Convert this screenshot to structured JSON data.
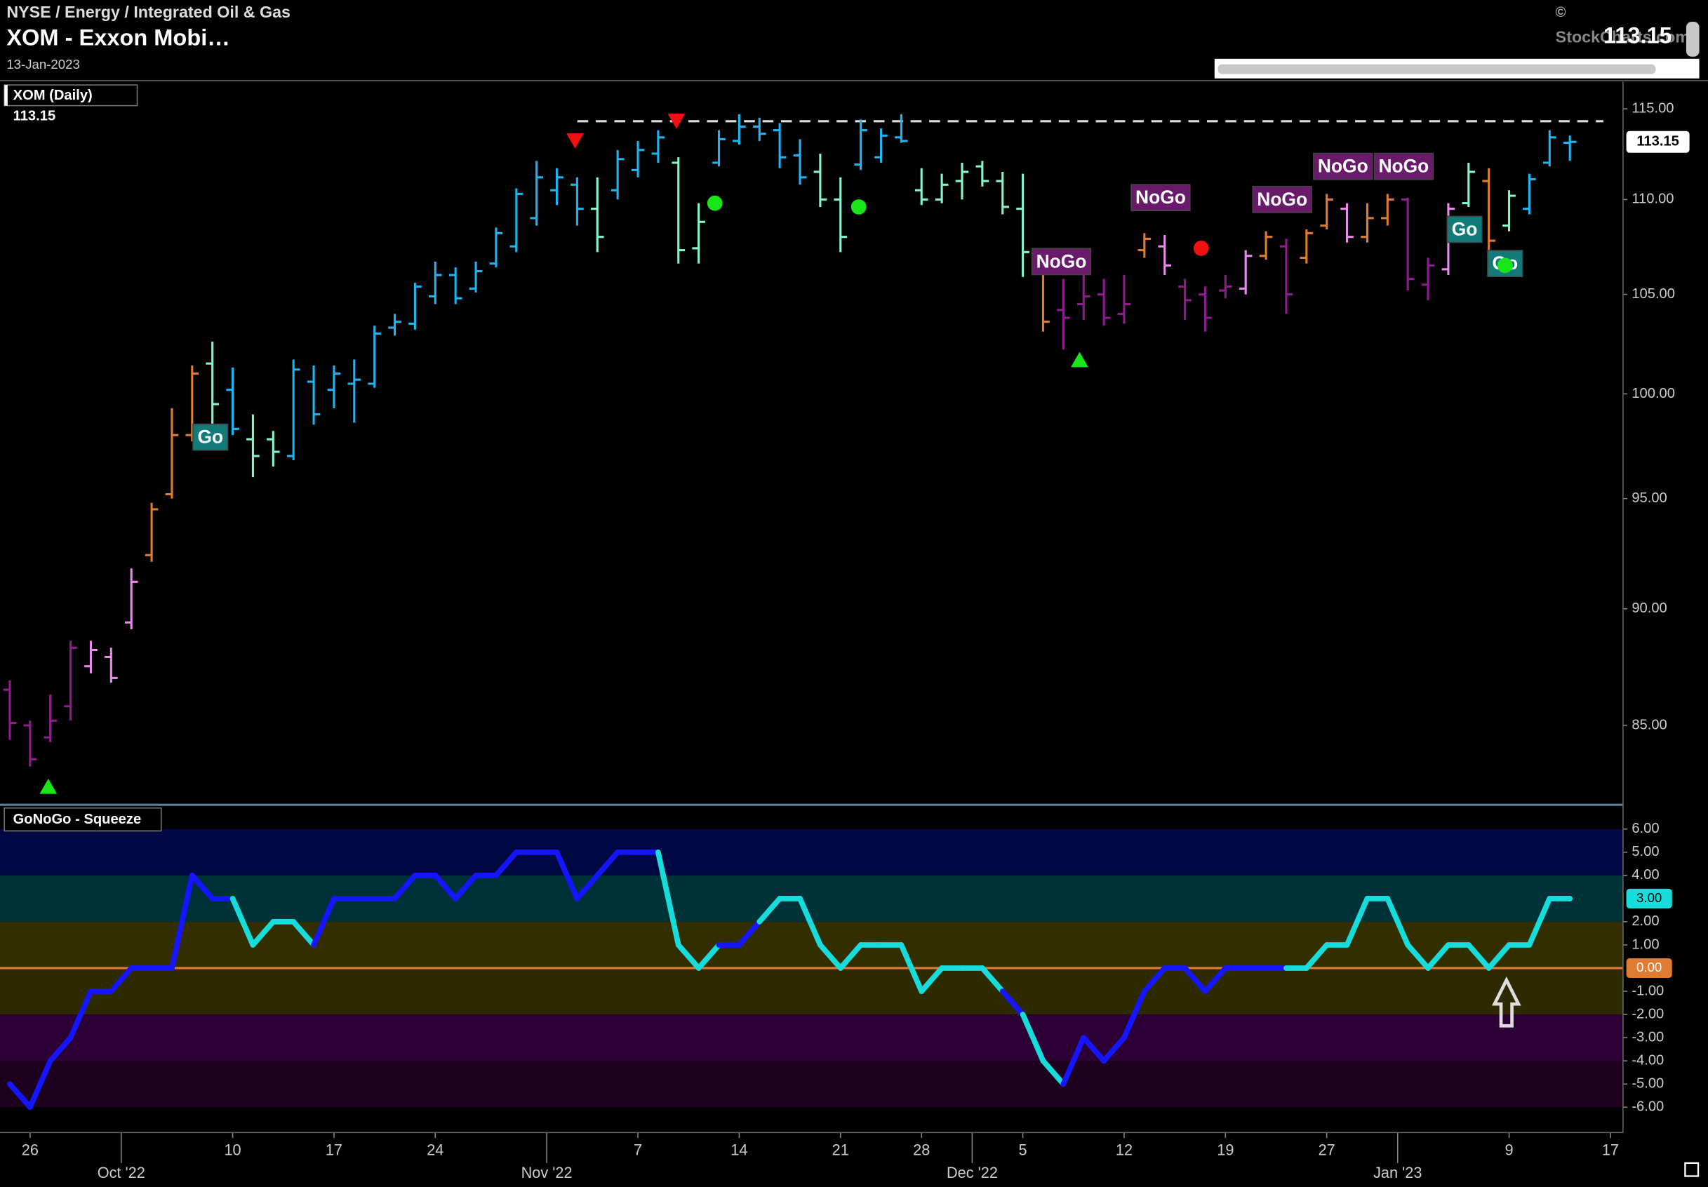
{
  "header": {
    "exchange": "NYSE / Energy / Integrated Oil & Gas",
    "name": "XOM - Exxon Mobi…",
    "date": "13-Jan-2023",
    "price": "113.15",
    "copyright": "©",
    "source": "StockCharts.com"
  },
  "chart_data": [
    {
      "type": "ohlc",
      "legend": "XOM (Daily)",
      "legend_value": "113.15",
      "log_scale": true,
      "ylim": [
        81.8,
        116.54
      ],
      "yticks": [
        {
          "value": 85,
          "label": "85.00"
        },
        {
          "value": 90,
          "label": "90.00"
        },
        {
          "value": 95,
          "label": "95.00"
        },
        {
          "value": 100,
          "label": "100.00"
        },
        {
          "value": 105,
          "label": "105.00"
        },
        {
          "value": 110,
          "label": "110.00"
        },
        {
          "value": 115,
          "label": "115.00"
        }
      ],
      "categories": [
        null,
        "26",
        null,
        null,
        null,
        null,
        null,
        null,
        null,
        null,
        null,
        "10",
        null,
        null,
        null,
        null,
        "17",
        null,
        null,
        null,
        null,
        "24",
        null,
        null,
        null,
        null,
        null,
        null,
        null,
        null,
        null,
        "7",
        null,
        null,
        null,
        null,
        "14",
        null,
        null,
        null,
        null,
        "21",
        null,
        null,
        null,
        "28",
        null,
        null,
        null,
        null,
        "5",
        null,
        null,
        null,
        null,
        "12",
        null,
        null,
        null,
        null,
        "19",
        null,
        null,
        null,
        null,
        "27",
        null,
        null,
        null,
        null,
        null,
        null,
        null,
        null,
        "9",
        null,
        null,
        null,
        null,
        "17"
      ],
      "month_ticks": [
        {
          "value": 5.5,
          "label": "Oct '22"
        },
        {
          "value": 26.5,
          "label": "Nov '22"
        },
        {
          "value": 47.5,
          "label": "Dec '22"
        },
        {
          "value": 68.5,
          "label": "Jan '23"
        }
      ],
      "series": [
        {
          "open": [
            86.5,
            85,
            84.5,
            85.8,
            87.5,
            87.9,
            89.4,
            92.4,
            95.2,
            98,
            101.5,
            100.2,
            97.8,
            97.8,
            97,
            100.6,
            100.2,
            100.5,
            100.5,
            103.3,
            103.5,
            104.9,
            106,
            105.3,
            106.6,
            107.5,
            109,
            110.5,
            110.8,
            109.5,
            110.5,
            111.6,
            112.5,
            112,
            107.4,
            112,
            113.2,
            114,
            113.8,
            112.4,
            111.5,
            110,
            111.9,
            112.3,
            113.4,
            110.5,
            110,
            111,
            111.8,
            111,
            109.5,
            106.2,
            104.2,
            104.5,
            105,
            104,
            107.3,
            107.5,
            105.4,
            105,
            105.2,
            105.3,
            107,
            107.5,
            106.9,
            108.6,
            109.5,
            108,
            109,
            110,
            105.5,
            106.3,
            109.8,
            111,
            108.6,
            109.5,
            112,
            113.1,
            null
          ],
          "high": [
            86.9,
            85.2,
            86.3,
            88.6,
            88.6,
            88.3,
            91.8,
            94.8,
            99.3,
            101.4,
            102.6,
            101.3,
            99,
            98.2,
            101.7,
            101.4,
            101.4,
            101.7,
            103.4,
            104,
            105.6,
            106.7,
            106.4,
            106.7,
            108.5,
            110.6,
            112.1,
            111.7,
            111.2,
            111.2,
            112.7,
            113.2,
            113.8,
            112.3,
            109.8,
            113.8,
            114.7,
            114.5,
            114.2,
            113.3,
            112.5,
            111.2,
            114.4,
            113.9,
            114.7,
            111.7,
            111.4,
            112,
            112.1,
            111.5,
            111.4,
            106.6,
            105.8,
            106.3,
            105.8,
            106,
            108.2,
            108.1,
            105.8,
            105.4,
            106,
            107.3,
            108.3,
            107.9,
            108.4,
            110.3,
            109.8,
            109.8,
            110.3,
            110.1,
            106.9,
            109.8,
            112,
            111.7,
            110.5,
            111.4,
            113.8,
            113.5,
            null
          ],
          "low": [
            84.4,
            83.3,
            84.3,
            85.2,
            87.2,
            86.8,
            89.1,
            92.1,
            95,
            97.7,
            98.2,
            98,
            96,
            96.5,
            96.8,
            98.5,
            99.3,
            98.6,
            100.3,
            102.9,
            103.2,
            104.5,
            104.5,
            105.1,
            106.4,
            107.2,
            108.6,
            109.7,
            108.6,
            107.2,
            110,
            111.2,
            112,
            106.6,
            106.6,
            111.8,
            113,
            113.2,
            111.7,
            110.8,
            109.6,
            107.2,
            111.6,
            112,
            113.1,
            109.7,
            109.8,
            110,
            110.7,
            109.2,
            105.9,
            103.1,
            102.2,
            103.7,
            103.4,
            103.5,
            106.9,
            106,
            103.7,
            103.1,
            104.8,
            105,
            106.8,
            104,
            106.6,
            108.4,
            107.7,
            107.7,
            108.6,
            105.2,
            104.7,
            106,
            109.6,
            107.2,
            108.3,
            109.2,
            111.8,
            112.1,
            null
          ],
          "close": [
            85.1,
            83.6,
            85.2,
            88.3,
            88.2,
            87,
            91.2,
            94.5,
            98,
            101,
            99.5,
            98.3,
            97,
            97.2,
            101.2,
            99,
            101,
            100.7,
            103,
            103.6,
            105.4,
            106,
            104.8,
            106.2,
            108.2,
            110.3,
            111.2,
            111.2,
            109.5,
            108,
            112.2,
            112.7,
            113.4,
            107.3,
            108.8,
            113.3,
            114,
            113.6,
            112.3,
            111.2,
            110,
            108,
            113.8,
            113.5,
            113.2,
            110,
            110.8,
            111.5,
            111,
            109.6,
            107.2,
            103.6,
            103.8,
            104.9,
            103.8,
            104.5,
            107.9,
            106.5,
            104.7,
            103.8,
            105.4,
            107,
            108,
            105,
            108.2,
            110,
            108,
            109,
            110,
            105.8,
            106.5,
            109.5,
            111.5,
            107.8,
            110.2,
            111.1,
            113.4,
            113.15,
            null
          ],
          "colors": [
            "#8e1c8e",
            "#8e1c8e",
            "#8e1c8e",
            "#8e1c8e",
            "#e98be9",
            "#e98be9",
            "#e98be9",
            "#e07b32",
            "#e07b32",
            "#e07b32",
            "#86f5cf",
            "#1eb4ef",
            "#86f5cf",
            "#86f5cf",
            "#1eb4ef",
            "#1eb4ef",
            "#1eb4ef",
            "#1eb4ef",
            "#1eb4ef",
            "#1eb4ef",
            "#1eb4ef",
            "#1eb4ef",
            "#1eb4ef",
            "#1eb4ef",
            "#1eb4ef",
            "#1eb4ef",
            "#1eb4ef",
            "#1eb4ef",
            "#1eb4ef",
            "#86f5cf",
            "#1eb4ef",
            "#1eb4ef",
            "#1eb4ef",
            "#86f5cf",
            "#86f5cf",
            "#1eb4ef",
            "#1eb4ef",
            "#1eb4ef",
            "#1eb4ef",
            "#1eb4ef",
            "#86f5cf",
            "#86f5cf",
            "#1eb4ef",
            "#1eb4ef",
            "#1eb4ef",
            "#86f5cf",
            "#86f5cf",
            "#86f5cf",
            "#86f5cf",
            "#86f5cf",
            "#86f5cf",
            "#e07b32",
            "#8e1c8e",
            "#8e1c8e",
            "#8e1c8e",
            "#8e1c8e",
            "#e07b32",
            "#e98be9",
            "#8e1c8e",
            "#8e1c8e",
            "#8e1c8e",
            "#e98be9",
            "#e07b32",
            "#8e1c8e",
            "#e07b32",
            "#e07b32",
            "#e98be9",
            "#e07b32",
            "#e07b32",
            "#8e1c8e",
            "#8e1c8e",
            "#e98be9",
            "#86f5cf",
            "#e07b32",
            "#86f5cf",
            "#1eb4ef",
            "#1eb4ef",
            "#1eb4ef",
            null
          ]
        }
      ],
      "resistance": 114.3,
      "annotations": [
        {
          "text": "Go",
          "x": 9.9,
          "y": 97.9,
          "color": "#137a7a"
        },
        {
          "text": "NoGo",
          "x": 51.9,
          "y": 106.7,
          "color": "#6a1a6a"
        },
        {
          "text": "NoGo",
          "x": 56.8,
          "y": 110.1,
          "color": "#6a1a6a"
        },
        {
          "text": "NoGo",
          "x": 62.8,
          "y": 110,
          "color": "#6a1a6a"
        },
        {
          "text": "NoGo",
          "x": 65.8,
          "y": 111.8,
          "color": "#6a1a6a"
        },
        {
          "text": "NoGo",
          "x": 68.8,
          "y": 111.8,
          "color": "#6a1a6a"
        },
        {
          "text": "Go",
          "x": 71.8,
          "y": 108.4,
          "color": "#137a7a"
        },
        {
          "text": "Go",
          "x": 73.8,
          "y": 106.6,
          "color": "#137a7a"
        }
      ],
      "markers": [
        {
          "shape": "triangle-up",
          "color": "#19e619",
          "x": 1.9,
          "y": 82.5
        },
        {
          "shape": "triangle-down",
          "color": "#f01010",
          "x": 27.9,
          "y": 113.2
        },
        {
          "shape": "triangle-down",
          "color": "#f01010",
          "x": 32.9,
          "y": 114.3
        },
        {
          "shape": "dot",
          "color": "#19e619",
          "x": 34.8,
          "y": 109.8
        },
        {
          "shape": "dot",
          "color": "#19e619",
          "x": 41.9,
          "y": 109.6
        },
        {
          "shape": "triangle-up",
          "color": "#19e619",
          "x": 52.8,
          "y": 101.7
        },
        {
          "shape": "dot",
          "color": "#f01010",
          "x": 58.8,
          "y": 107.4
        },
        {
          "shape": "dot",
          "color": "#19e619",
          "x": 73.8,
          "y": 106.5
        }
      ]
    },
    {
      "type": "line",
      "title": "GoNoGo - Squeeze",
      "ylim": [
        -7,
        7
      ],
      "yticks": [
        {
          "value": 6,
          "label": "6.00"
        },
        {
          "value": 5,
          "label": "5.00"
        },
        {
          "value": 4,
          "label": "4.00"
        },
        {
          "value": 2,
          "label": "2.00"
        },
        {
          "value": 1,
          "label": "1.00"
        },
        {
          "value": -1,
          "label": "-1.00"
        },
        {
          "value": -2,
          "label": "-2.00"
        },
        {
          "value": -3,
          "label": "-3.00"
        },
        {
          "value": -4,
          "label": "-4.00"
        },
        {
          "value": -5,
          "label": "-5.00"
        },
        {
          "value": -6,
          "label": "-6.00"
        }
      ],
      "bands": [
        {
          "from": 4,
          "to": 6,
          "color": "#000844"
        },
        {
          "from": 2,
          "to": 4,
          "color": "#003238"
        },
        {
          "from": 0,
          "to": 2,
          "color": "#332e00"
        },
        {
          "from": -2,
          "to": 0,
          "color": "#2e2a00"
        },
        {
          "from": -4,
          "to": -2,
          "color": "#2c0034"
        },
        {
          "from": -6,
          "to": -4,
          "color": "#1c001e"
        }
      ],
      "series": [
        {
          "values": [
            -5,
            -6,
            -4,
            -3,
            -1,
            -1,
            0,
            0,
            0,
            4,
            3,
            3,
            1,
            2,
            2,
            1,
            3,
            3,
            3,
            3,
            4,
            4,
            3,
            4,
            4,
            5,
            5,
            5,
            3,
            4,
            5,
            5,
            5,
            1,
            0,
            1,
            1,
            2,
            3,
            3,
            1,
            0,
            1,
            1,
            1,
            -1,
            0,
            0,
            0,
            -1,
            -2,
            -4,
            -5,
            -3,
            -4,
            -3,
            -1,
            0,
            0,
            -1,
            0,
            0,
            0,
            0,
            0,
            1,
            1,
            3,
            3,
            1,
            0,
            1,
            1,
            0,
            1,
            1,
            3,
            3,
            null
          ],
          "colors": [
            "#16dcdc",
            "#1515ff",
            "#1515ff",
            "#1515ff",
            "#1515ff",
            "#1515ff",
            "#1515ff",
            "#1515ff",
            "#1515ff",
            "#1515ff",
            "#1515ff",
            "#1515ff",
            "#16dcdc",
            "#16dcdc",
            "#16dcdc",
            "#16dcdc",
            "#1515ff",
            "#1515ff",
            "#1515ff",
            "#1515ff",
            "#1515ff",
            "#1515ff",
            "#1515ff",
            "#1515ff",
            "#1515ff",
            "#1515ff",
            "#1515ff",
            "#1515ff",
            "#1515ff",
            "#1515ff",
            "#1515ff",
            "#1515ff",
            "#1515ff",
            "#16dcdc",
            "#16dcdc",
            "#16dcdc",
            "#1515ff",
            "#1515ff",
            "#16dcdc",
            "#16dcdc",
            "#16dcdc",
            "#16dcdc",
            "#16dcdc",
            "#16dcdc",
            "#16dcdc",
            "#16dcdc",
            "#16dcdc",
            "#16dcdc",
            "#16dcdc",
            "#16dcdc",
            "#1515ff",
            "#16dcdc",
            "#16dcdc",
            "#1515ff",
            "#1515ff",
            "#1515ff",
            "#1515ff",
            "#1515ff",
            "#1515ff",
            "#1515ff",
            "#1515ff",
            "#1515ff",
            "#1515ff",
            "#1515ff",
            "#16dcdc",
            "#16dcdc",
            "#16dcdc",
            "#16dcdc",
            "#16dcdc",
            "#16dcdc",
            "#16dcdc",
            "#16dcdc",
            "#16dcdc",
            "#16dcdc",
            "#16dcdc",
            "#16dcdc",
            "#16dcdc",
            "#16dcdc",
            null
          ]
        }
      ],
      "zero_line": {
        "value": 0,
        "label": "0.00",
        "color": "#e07b32"
      },
      "last_label": {
        "value": 3,
        "label": "3.00",
        "color": "#16dcdc"
      }
    }
  ]
}
